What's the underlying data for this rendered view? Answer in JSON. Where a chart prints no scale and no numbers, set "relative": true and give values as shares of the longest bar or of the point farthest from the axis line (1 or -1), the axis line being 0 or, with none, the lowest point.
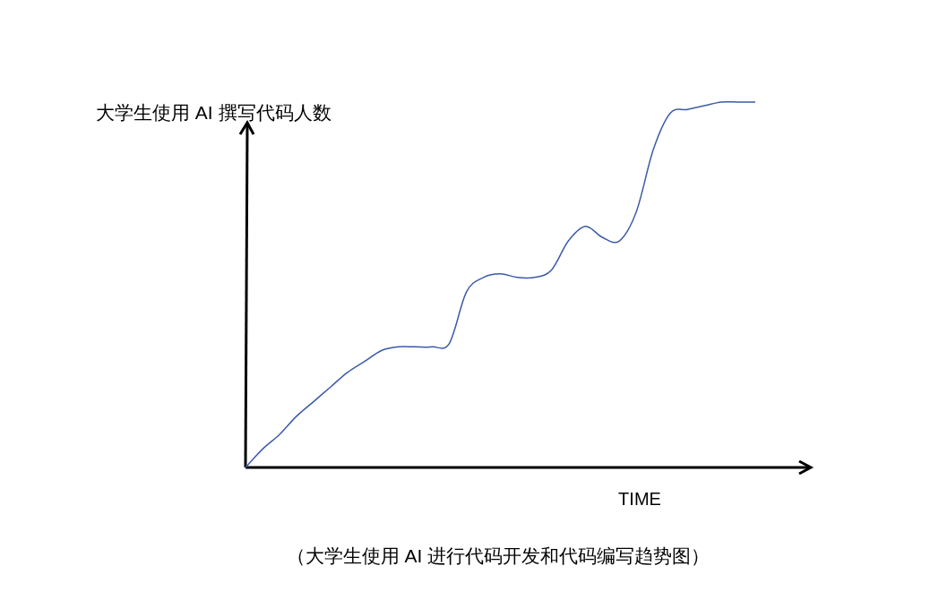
{
  "chart_data": {
    "type": "line",
    "relative": true,
    "ylabel": "大学生使用 AI 撰写代码人数",
    "xlabel": "TIME",
    "annotations": [
      "（大学生使用 AI 进行代码开发和代码编写趋势图）"
    ],
    "categories": [
      null,
      null,
      null,
      null,
      null,
      null,
      null,
      null,
      null,
      null,
      null,
      null,
      null,
      null,
      null,
      null,
      null,
      null,
      null,
      null,
      null,
      null,
      null,
      null,
      null,
      null,
      null,
      null,
      null,
      null,
      null
    ],
    "color": "#3b5ba8",
    "values": [
      0,
      0.05,
      0.09,
      0.14,
      0.18,
      0.22,
      0.26,
      0.29,
      0.32,
      0.33,
      0.33,
      0.33,
      0.34,
      0.48,
      0.52,
      0.53,
      0.52,
      0.52,
      0.54,
      0.62,
      0.66,
      0.63,
      0.62,
      0.7,
      0.87,
      0.97,
      0.98,
      0.99,
      1.0,
      1.0,
      1.0
    ]
  }
}
